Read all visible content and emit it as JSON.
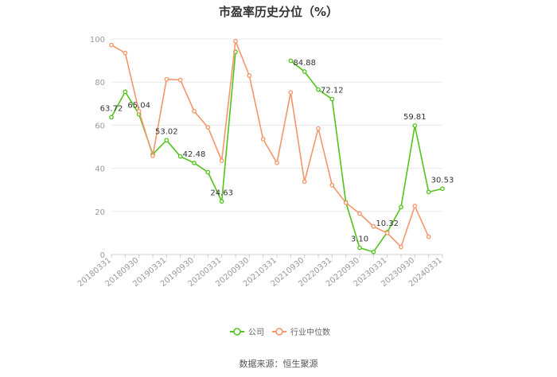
{
  "chart_data": {
    "type": "line",
    "title": "市盈率历史分位（%）",
    "source": "数据来源：恒生聚源",
    "ylim": [
      0,
      100
    ],
    "yticks": [
      0,
      20,
      40,
      60,
      80,
      100
    ],
    "categories": [
      "20180331",
      "20180630",
      "20180930",
      "20181231",
      "20190331",
      "20190630",
      "20190930",
      "20191231",
      "20200331",
      "20200630",
      "20200930",
      "20201231",
      "20210331",
      "20210630",
      "20210930",
      "20211231",
      "20220331",
      "20220630",
      "20220930",
      "20221231",
      "20230331",
      "20230630",
      "20230930",
      "20231231",
      "20240331"
    ],
    "xtick_labels": [
      "20180331",
      "20180930",
      "20190331",
      "20190930",
      "20200331",
      "20200930",
      "20210331",
      "20210930",
      "20220331",
      "20220930",
      "20230331",
      "20230930",
      "20240331"
    ],
    "series": [
      {
        "name": "公司",
        "color": "#52c41a",
        "values": [
          63.72,
          75.5,
          65.04,
          46.5,
          53.02,
          45.5,
          42.48,
          38.2,
          24.63,
          94.0,
          null,
          null,
          null,
          89.9,
          84.88,
          76.5,
          72.12,
          24.2,
          3.1,
          1.2,
          10.32,
          22.0,
          59.81,
          29.0,
          30.53
        ],
        "labels": [
          "63.72",
          "",
          "65.04",
          "",
          "53.02",
          "",
          "42.48",
          "",
          "24.63",
          "",
          "",
          "",
          "",
          "",
          "84.88",
          "",
          "72.12",
          "",
          "3.10",
          "",
          "10.32",
          "",
          "59.81",
          "",
          "30.53"
        ]
      },
      {
        "name": "行业中位数",
        "color": "#f4956a",
        "values": [
          97.2,
          93.5,
          66.5,
          45.8,
          81.3,
          81.0,
          66.5,
          59.0,
          43.5,
          99.0,
          83.0,
          53.5,
          42.5,
          75.2,
          33.8,
          58.5,
          32.2,
          24.0,
          19.0,
          13.0,
          10.0,
          3.5,
          22.5,
          8.2,
          null
        ],
        "labels": []
      }
    ],
    "legend_position": "bottom"
  }
}
